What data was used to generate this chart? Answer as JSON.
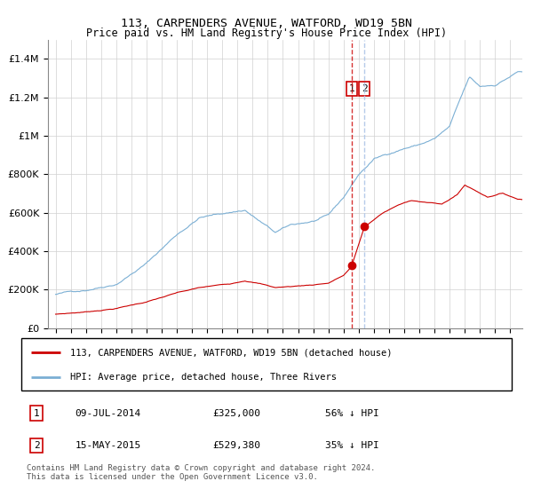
{
  "title": "113, CARPENDERS AVENUE, WATFORD, WD19 5BN",
  "subtitle": "Price paid vs. HM Land Registry's House Price Index (HPI)",
  "legend_line1": "113, CARPENDERS AVENUE, WATFORD, WD19 5BN (detached house)",
  "legend_line2": "HPI: Average price, detached house, Three Rivers",
  "sale1_date": "09-JUL-2014",
  "sale1_price": 325000,
  "sale1_label": "56% ↓ HPI",
  "sale2_date": "15-MAY-2015",
  "sale2_price": 529380,
  "sale2_label": "35% ↓ HPI",
  "footnote": "Contains HM Land Registry data © Crown copyright and database right 2024.\nThis data is licensed under the Open Government Licence v3.0.",
  "red_color": "#cc0000",
  "blue_color": "#7bafd4",
  "vline1_color": "#cc0000",
  "vline2_color": "#aec6e8",
  "ylim": [
    0,
    1500000
  ],
  "xlim_start": 1994.5,
  "xlim_end": 2025.8,
  "sale1_x": 2014.53,
  "sale2_x": 2015.37
}
